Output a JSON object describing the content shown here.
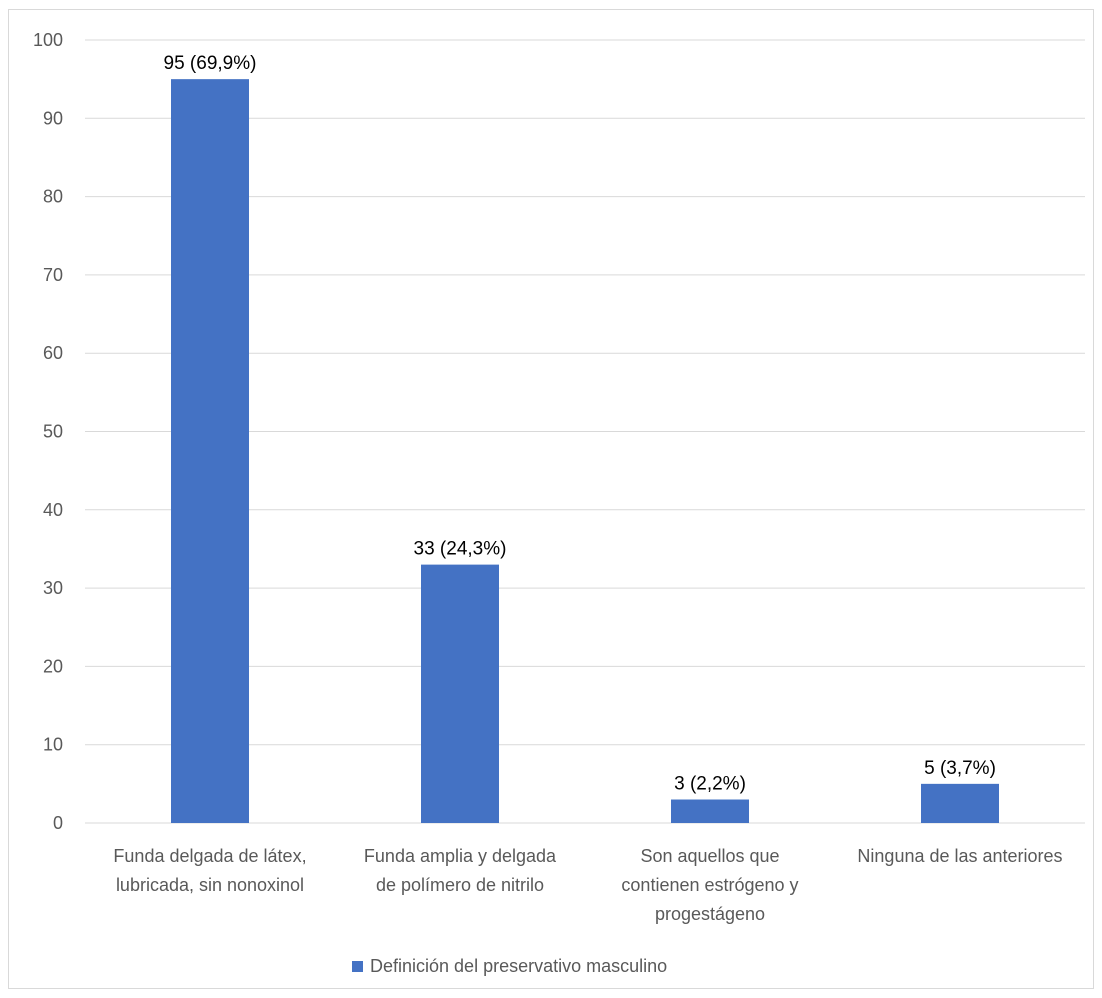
{
  "chart_data": {
    "type": "bar",
    "categories": [
      [
        "Funda delgada de látex,",
        "lubricada, sin nonoxinol"
      ],
      [
        "Funda amplia y delgada",
        "de polímero de nitrilo"
      ],
      [
        "Son aquellos que",
        "contienen estrógeno y",
        "progestágeno"
      ],
      [
        "Ninguna de las anteriores"
      ]
    ],
    "series": [
      {
        "name": "Definición del preservativo masculino",
        "values": [
          95,
          33,
          3,
          5
        ],
        "data_labels": [
          "95 (69,9%)",
          "33 (24,3%)",
          "3 (2,2%)",
          "5 (3,7%)"
        ],
        "color": "#4472c4"
      }
    ],
    "ylim": [
      0,
      100
    ],
    "yticks": [
      0,
      10,
      20,
      30,
      40,
      50,
      60,
      70,
      80,
      90,
      100
    ],
    "grid": true,
    "gridColor": "#d9d9d9",
    "legend": "bottom"
  }
}
